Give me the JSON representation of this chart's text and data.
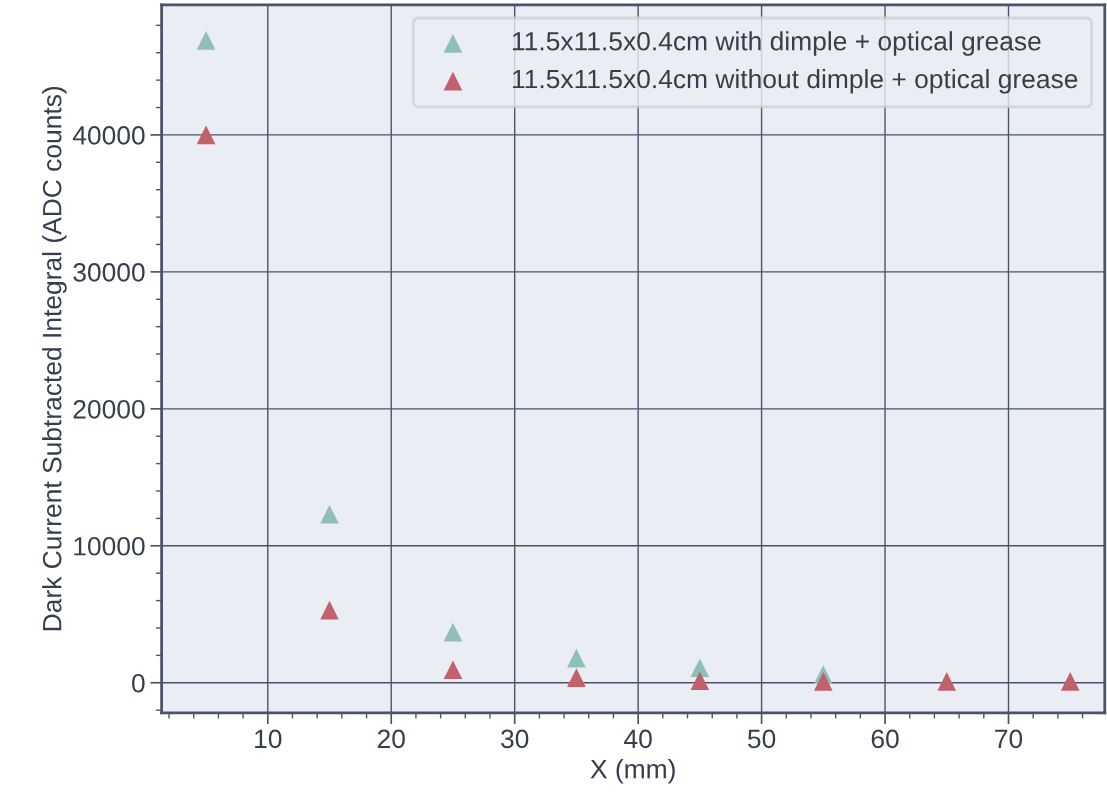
{
  "chart_data": {
    "type": "scatter",
    "xlabel": "X (mm)",
    "ylabel": "Dark Current Subtracted Integral (ADC counts)",
    "x": [
      5,
      15,
      25,
      35,
      45,
      55,
      65,
      75
    ],
    "series": [
      {
        "name": "11.5x11.5x0.4cm with dimple + optical grease",
        "color": "#8fbfbb",
        "values": [
          46900,
          12300,
          3700,
          1800,
          1100,
          600,
          null,
          null
        ]
      },
      {
        "name": "11.5x11.5x0.4cm without dimple + optical grease",
        "color": "#c0616b",
        "values": [
          40000,
          5300,
          950,
          370,
          150,
          100,
          100,
          100
        ]
      }
    ],
    "xlim": [
      1.4,
      77.8
    ],
    "ylim": [
      -2200,
      49500
    ],
    "xticks": [
      10,
      20,
      30,
      40,
      50,
      60,
      70
    ],
    "yticks": [
      0,
      10000,
      20000,
      30000,
      40000
    ],
    "grid": true,
    "legend": "top right",
    "marker": "triangle"
  }
}
